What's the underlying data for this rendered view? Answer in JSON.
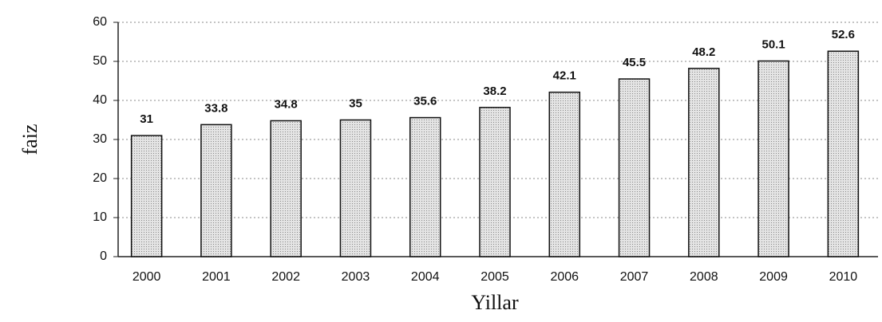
{
  "chart_data": {
    "type": "bar",
    "categories": [
      "2000",
      "2001",
      "2002",
      "2003",
      "2004",
      "2005",
      "2006",
      "2007",
      "2008",
      "2009",
      "2010"
    ],
    "values": [
      31,
      33.8,
      34.8,
      35,
      35.6,
      38.2,
      42.1,
      45.5,
      48.2,
      50.1,
      52.6
    ],
    "color": "#d2d2d2",
    "ylim": [
      0,
      60
    ],
    "yticks": [
      0,
      10,
      20,
      30,
      40,
      50,
      60
    ],
    "grid": true,
    "y_label": "faiz",
    "x_label": "Yillar"
  }
}
